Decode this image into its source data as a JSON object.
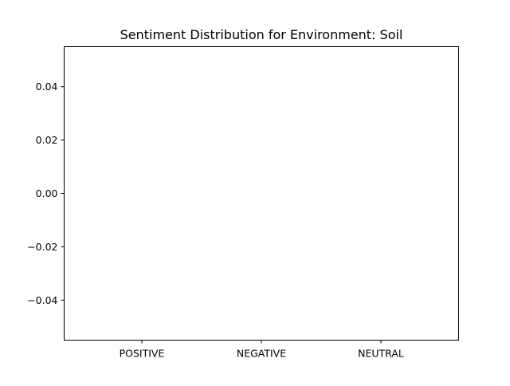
{
  "chart_data": {
    "type": "bar",
    "title": "Sentiment Distribution for Environment: Soil",
    "xlabel": "",
    "ylabel": "",
    "categories": [
      "POSITIVE",
      "NEGATIVE",
      "NEUTRAL"
    ],
    "values": [
      0,
      0,
      0
    ],
    "ylim": [
      -0.055,
      0.055
    ],
    "yticks": [
      0.04,
      0.02,
      0.0,
      -0.02,
      -0.04
    ],
    "ytick_labels": [
      "0.04",
      "0.02",
      "0.00",
      "−0.02",
      "−0.04"
    ],
    "grid": false,
    "legend": "none",
    "colors": {
      "axis": "#000000",
      "background": "#ffffff",
      "bar": "#1f77b4"
    }
  }
}
